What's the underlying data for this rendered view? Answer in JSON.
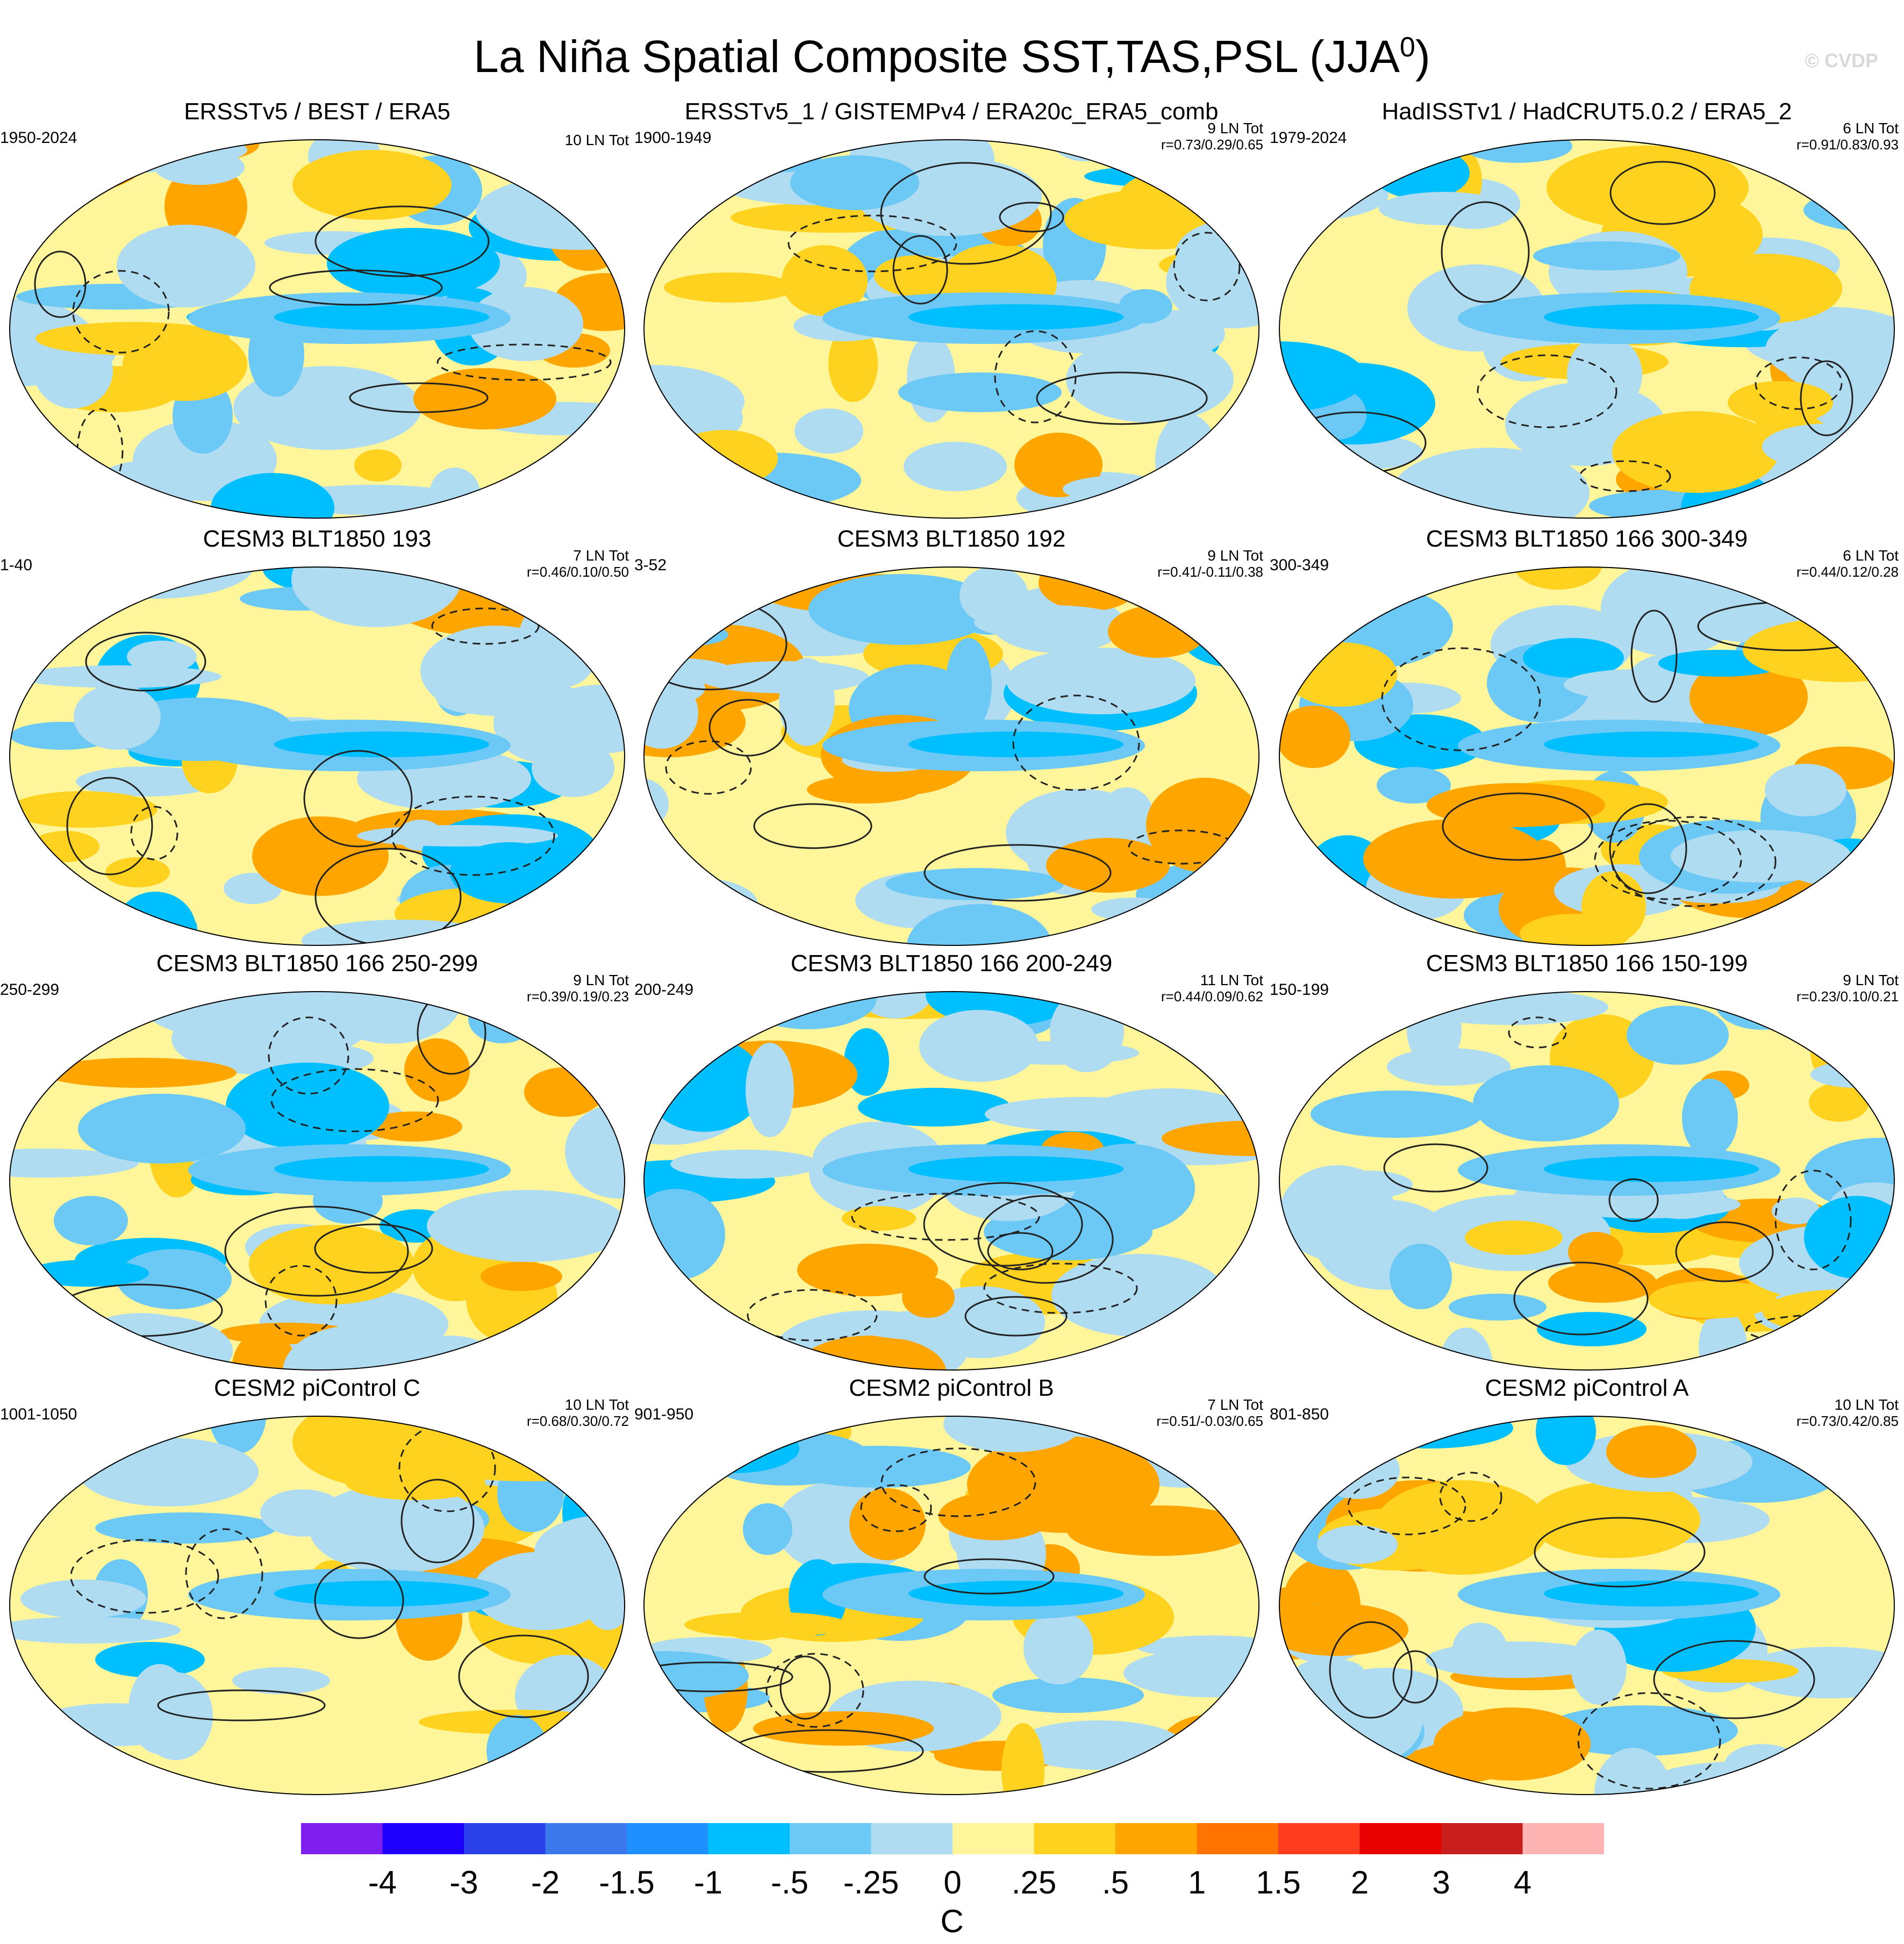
{
  "title": "La Niña Spatial Composite SST,TAS,PSL (JJA",
  "title_sup": "0",
  "title_close": ")",
  "watermark": "© CVDP",
  "panels": [
    {
      "title": "ERSSTv5 / BEST / ERA5",
      "years": "1950-2024",
      "count": "10 LN Tot",
      "corr": ""
    },
    {
      "title": "ERSSTv5_1 / GISTEMPv4 / ERA20c_ERA5_comb",
      "years": "1900-1949",
      "count": "9 LN Tot",
      "corr": "r=0.73/0.29/0.65"
    },
    {
      "title": "HadISSTv1 / HadCRUT5.0.2 / ERA5_2",
      "years": "1979-2024",
      "count": "6 LN Tot",
      "corr": "r=0.91/0.83/0.93"
    },
    {
      "title": "CESM3 BLT1850 193",
      "years": "1-40",
      "count": "7 LN Tot",
      "corr": "r=0.46/0.10/0.50"
    },
    {
      "title": "CESM3 BLT1850 192",
      "years": "3-52",
      "count": "9 LN Tot",
      "corr": "r=0.41/-0.11/0.38"
    },
    {
      "title": "CESM3 BLT1850 166 300-349",
      "years": "300-349",
      "count": "6 LN Tot",
      "corr": "r=0.44/0.12/0.28"
    },
    {
      "title": "CESM3 BLT1850 166 250-299",
      "years": "250-299",
      "count": "9 LN Tot",
      "corr": "r=0.39/0.19/0.23"
    },
    {
      "title": "CESM3 BLT1850 166 200-249",
      "years": "200-249",
      "count": "11 LN Tot",
      "corr": "r=0.44/0.09/0.62"
    },
    {
      "title": "CESM3 BLT1850 166 150-199",
      "years": "150-199",
      "count": "9 LN Tot",
      "corr": "r=0.23/0.10/0.21"
    },
    {
      "title": "CESM2 piControl C",
      "years": "1001-1050",
      "count": "10 LN Tot",
      "corr": "r=0.68/0.30/0.72"
    },
    {
      "title": "CESM2 piControl B",
      "years": "901-950",
      "count": "7 LN Tot",
      "corr": "r=0.51/-0.03/0.65"
    },
    {
      "title": "CESM2 piControl A",
      "years": "801-850",
      "count": "10 LN Tot",
      "corr": "r=0.73/0.42/0.85"
    }
  ],
  "colorbar": {
    "colors": [
      "#7e1ff0",
      "#1f00ff",
      "#2a40e8",
      "#3a78ec",
      "#1e90ff",
      "#00bfff",
      "#6cc8f4",
      "#b0dcf2",
      "#fff59b",
      "#ffd21f",
      "#ffa500",
      "#ff7300",
      "#ff3c1e",
      "#e80000",
      "#c81e1e",
      "#ffb4b4"
    ],
    "labels": [
      "-4",
      "-3",
      "-2",
      "-1.5",
      "-1",
      "-.5",
      "-.25",
      "0",
      ".25",
      ".5",
      "1",
      "1.5",
      "2",
      "3",
      "4"
    ],
    "unit": "C"
  }
}
